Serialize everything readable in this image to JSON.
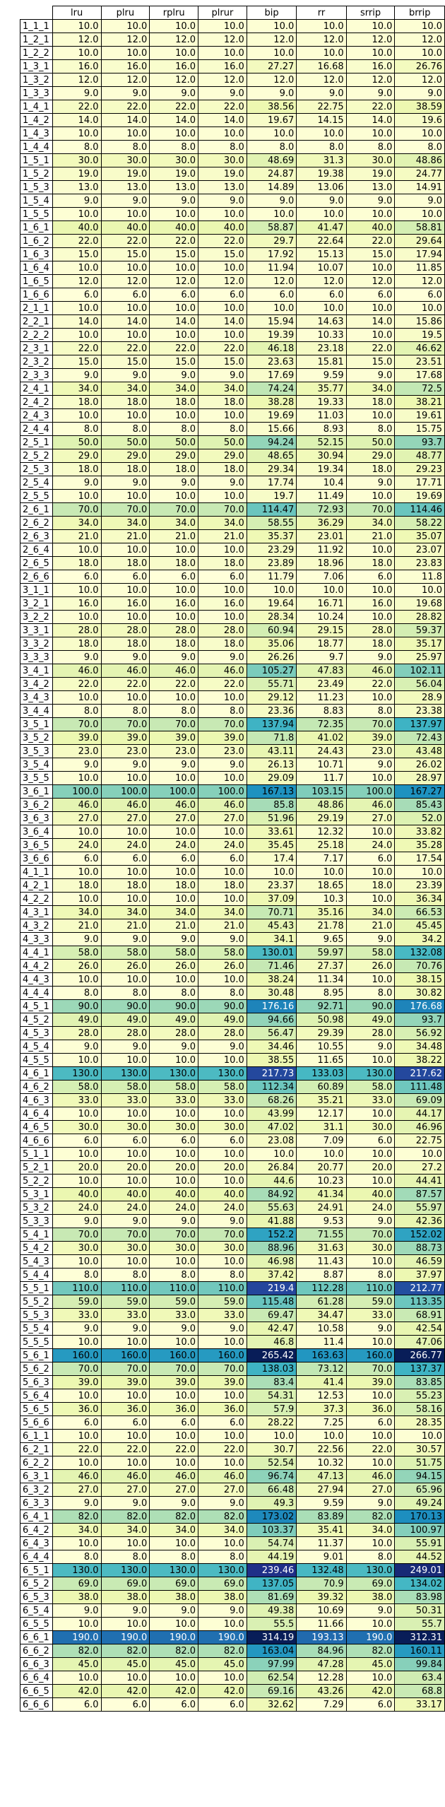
{
  "chart_data": {
    "type": "table",
    "columns": [
      "lru",
      "plru",
      "rplru",
      "plrur",
      "bip",
      "rr",
      "srrip",
      "brrip"
    ],
    "color_scale": {
      "colors": [
        "#ffffd9",
        "#edf8b1",
        "#c7e9b4",
        "#7fcdbb",
        "#41b6c4",
        "#1d91c0",
        "#225ea8",
        "#253494",
        "#081d58"
      ],
      "min": 6.0,
      "max": 265.42
    },
    "rows": [
      [
        "1_1_1",
        10.0,
        10.0,
        10.0,
        10.0,
        10.0,
        10.0,
        10.0,
        10.0
      ],
      [
        "1_2_1",
        12.0,
        12.0,
        12.0,
        12.0,
        12.0,
        12.0,
        12.0,
        12.0
      ],
      [
        "1_2_2",
        10.0,
        10.0,
        10.0,
        10.0,
        10.0,
        10.0,
        10.0,
        10.0
      ],
      [
        "1_3_1",
        16.0,
        16.0,
        16.0,
        16.0,
        27.27,
        16.68,
        16.0,
        26.76
      ],
      [
        "1_3_2",
        12.0,
        12.0,
        12.0,
        12.0,
        12.0,
        12.0,
        12.0,
        12.0
      ],
      [
        "1_3_3",
        9.0,
        9.0,
        9.0,
        9.0,
        9.0,
        9.0,
        9.0,
        9.0
      ],
      [
        "1_4_1",
        22.0,
        22.0,
        22.0,
        22.0,
        38.56,
        22.75,
        22.0,
        38.59
      ],
      [
        "1_4_2",
        14.0,
        14.0,
        14.0,
        14.0,
        19.67,
        14.15,
        14.0,
        19.6
      ],
      [
        "1_4_3",
        10.0,
        10.0,
        10.0,
        10.0,
        10.0,
        10.0,
        10.0,
        10.0
      ],
      [
        "1_4_4",
        8.0,
        8.0,
        8.0,
        8.0,
        8.0,
        8.0,
        8.0,
        8.0
      ],
      [
        "1_5_1",
        30.0,
        30.0,
        30.0,
        30.0,
        48.69,
        31.3,
        30.0,
        48.86
      ],
      [
        "1_5_2",
        19.0,
        19.0,
        19.0,
        19.0,
        24.87,
        19.38,
        19.0,
        24.77
      ],
      [
        "1_5_3",
        13.0,
        13.0,
        13.0,
        13.0,
        14.89,
        13.06,
        13.0,
        14.91
      ],
      [
        "1_5_4",
        9.0,
        9.0,
        9.0,
        9.0,
        9.0,
        9.0,
        9.0,
        9.0
      ],
      [
        "1_5_5",
        10.0,
        10.0,
        10.0,
        10.0,
        10.0,
        10.0,
        10.0,
        10.0
      ],
      [
        "1_6_1",
        40.0,
        40.0,
        40.0,
        40.0,
        58.87,
        41.47,
        40.0,
        58.81
      ],
      [
        "1_6_2",
        22.0,
        22.0,
        22.0,
        22.0,
        29.7,
        22.64,
        22.0,
        29.64
      ],
      [
        "1_6_3",
        15.0,
        15.0,
        15.0,
        15.0,
        17.92,
        15.13,
        15.0,
        17.94
      ],
      [
        "1_6_4",
        10.0,
        10.0,
        10.0,
        10.0,
        11.94,
        10.07,
        10.0,
        11.85
      ],
      [
        "1_6_5",
        12.0,
        12.0,
        12.0,
        12.0,
        12.0,
        12.0,
        12.0,
        12.0
      ],
      [
        "1_6_6",
        6.0,
        6.0,
        6.0,
        6.0,
        6.0,
        6.0,
        6.0,
        6.0
      ],
      [
        "2_1_1",
        10.0,
        10.0,
        10.0,
        10.0,
        10.0,
        10.0,
        10.0,
        10.0
      ],
      [
        "2_2_1",
        14.0,
        14.0,
        14.0,
        14.0,
        15.94,
        14.63,
        14.0,
        15.86
      ],
      [
        "2_2_2",
        10.0,
        10.0,
        10.0,
        10.0,
        19.39,
        10.33,
        10.0,
        19.5
      ],
      [
        "2_3_1",
        22.0,
        22.0,
        22.0,
        22.0,
        46.18,
        23.18,
        22.0,
        46.62
      ],
      [
        "2_3_2",
        15.0,
        15.0,
        15.0,
        15.0,
        23.63,
        15.81,
        15.0,
        23.51
      ],
      [
        "2_3_3",
        9.0,
        9.0,
        9.0,
        9.0,
        17.69,
        9.59,
        9.0,
        17.68
      ],
      [
        "2_4_1",
        34.0,
        34.0,
        34.0,
        34.0,
        74.24,
        35.77,
        34.0,
        72.5
      ],
      [
        "2_4_2",
        18.0,
        18.0,
        18.0,
        18.0,
        38.28,
        19.33,
        18.0,
        38.21
      ],
      [
        "2_4_3",
        10.0,
        10.0,
        10.0,
        10.0,
        19.69,
        11.03,
        10.0,
        19.61
      ],
      [
        "2_4_4",
        8.0,
        8.0,
        8.0,
        8.0,
        15.66,
        8.93,
        8.0,
        15.75
      ],
      [
        "2_5_1",
        50.0,
        50.0,
        50.0,
        50.0,
        94.24,
        52.15,
        50.0,
        93.7
      ],
      [
        "2_5_2",
        29.0,
        29.0,
        29.0,
        29.0,
        48.65,
        30.94,
        29.0,
        48.77
      ],
      [
        "2_5_3",
        18.0,
        18.0,
        18.0,
        18.0,
        29.34,
        19.34,
        18.0,
        29.23
      ],
      [
        "2_5_4",
        9.0,
        9.0,
        9.0,
        9.0,
        17.74,
        10.4,
        9.0,
        17.71
      ],
      [
        "2_5_5",
        10.0,
        10.0,
        10.0,
        10.0,
        19.7,
        11.49,
        10.0,
        19.69
      ],
      [
        "2_6_1",
        70.0,
        70.0,
        70.0,
        70.0,
        114.47,
        72.93,
        70.0,
        114.46
      ],
      [
        "2_6_2",
        34.0,
        34.0,
        34.0,
        34.0,
        58.55,
        36.29,
        34.0,
        58.22
      ],
      [
        "2_6_3",
        21.0,
        21.0,
        21.0,
        21.0,
        35.37,
        23.01,
        21.0,
        35.07
      ],
      [
        "2_6_4",
        10.0,
        10.0,
        10.0,
        10.0,
        23.29,
        11.92,
        10.0,
        23.07
      ],
      [
        "2_6_5",
        18.0,
        18.0,
        18.0,
        18.0,
        23.89,
        18.96,
        18.0,
        23.83
      ],
      [
        "2_6_6",
        6.0,
        6.0,
        6.0,
        6.0,
        11.79,
        7.06,
        6.0,
        11.8
      ],
      [
        "3_1_1",
        10.0,
        10.0,
        10.0,
        10.0,
        10.0,
        10.0,
        10.0,
        10.0
      ],
      [
        "3_2_1",
        16.0,
        16.0,
        16.0,
        16.0,
        19.64,
        16.71,
        16.0,
        19.68
      ],
      [
        "3_2_2",
        10.0,
        10.0,
        10.0,
        10.0,
        28.34,
        10.24,
        10.0,
        28.82
      ],
      [
        "3_3_1",
        28.0,
        28.0,
        28.0,
        28.0,
        60.94,
        29.15,
        28.0,
        59.37
      ],
      [
        "3_3_2",
        18.0,
        18.0,
        18.0,
        18.0,
        35.06,
        18.77,
        18.0,
        35.17
      ],
      [
        "3_3_3",
        9.0,
        9.0,
        9.0,
        9.0,
        26.26,
        9.7,
        9.0,
        25.97
      ],
      [
        "3_4_1",
        46.0,
        46.0,
        46.0,
        46.0,
        105.27,
        47.83,
        46.0,
        102.11
      ],
      [
        "3_4_2",
        22.0,
        22.0,
        22.0,
        22.0,
        55.71,
        23.49,
        22.0,
        56.04
      ],
      [
        "3_4_3",
        10.0,
        10.0,
        10.0,
        10.0,
        29.12,
        11.23,
        10.0,
        28.9
      ],
      [
        "3_4_4",
        8.0,
        8.0,
        8.0,
        8.0,
        23.36,
        8.83,
        8.0,
        23.38
      ],
      [
        "3_5_1",
        70.0,
        70.0,
        70.0,
        70.0,
        137.94,
        72.35,
        70.0,
        137.97
      ],
      [
        "3_5_2",
        39.0,
        39.0,
        39.0,
        39.0,
        71.8,
        41.02,
        39.0,
        72.43
      ],
      [
        "3_5_3",
        23.0,
        23.0,
        23.0,
        23.0,
        43.11,
        24.43,
        23.0,
        43.48
      ],
      [
        "3_5_4",
        9.0,
        9.0,
        9.0,
        9.0,
        26.13,
        10.71,
        9.0,
        26.02
      ],
      [
        "3_5_5",
        10.0,
        10.0,
        10.0,
        10.0,
        29.09,
        11.7,
        10.0,
        28.97
      ],
      [
        "3_6_1",
        100.0,
        100.0,
        100.0,
        100.0,
        167.13,
        103.15,
        100.0,
        167.27
      ],
      [
        "3_6_2",
        46.0,
        46.0,
        46.0,
        46.0,
        85.8,
        48.86,
        46.0,
        85.43
      ],
      [
        "3_6_3",
        27.0,
        27.0,
        27.0,
        27.0,
        51.96,
        29.19,
        27.0,
        52.0
      ],
      [
        "3_6_4",
        10.0,
        10.0,
        10.0,
        10.0,
        33.61,
        12.32,
        10.0,
        33.82
      ],
      [
        "3_6_5",
        24.0,
        24.0,
        24.0,
        24.0,
        35.45,
        25.18,
        24.0,
        35.28
      ],
      [
        "3_6_6",
        6.0,
        6.0,
        6.0,
        6.0,
        17.4,
        7.17,
        6.0,
        17.54
      ],
      [
        "4_1_1",
        10.0,
        10.0,
        10.0,
        10.0,
        10.0,
        10.0,
        10.0,
        10.0
      ],
      [
        "4_2_1",
        18.0,
        18.0,
        18.0,
        18.0,
        23.37,
        18.65,
        18.0,
        23.39
      ],
      [
        "4_2_2",
        10.0,
        10.0,
        10.0,
        10.0,
        37.09,
        10.3,
        10.0,
        36.34
      ],
      [
        "4_3_1",
        34.0,
        34.0,
        34.0,
        34.0,
        70.71,
        35.16,
        34.0,
        66.53
      ],
      [
        "4_3_2",
        21.0,
        21.0,
        21.0,
        21.0,
        45.43,
        21.78,
        21.0,
        45.45
      ],
      [
        "4_3_3",
        9.0,
        9.0,
        9.0,
        9.0,
        34.1,
        9.65,
        9.0,
        34.2
      ],
      [
        "4_4_1",
        58.0,
        58.0,
        58.0,
        58.0,
        130.01,
        59.97,
        58.0,
        132.08
      ],
      [
        "4_4_2",
        26.0,
        26.0,
        26.0,
        26.0,
        71.46,
        27.37,
        26.0,
        70.76
      ],
      [
        "4_4_3",
        10.0,
        10.0,
        10.0,
        10.0,
        38.24,
        11.34,
        10.0,
        38.15
      ],
      [
        "4_4_4",
        8.0,
        8.0,
        8.0,
        8.0,
        30.48,
        8.95,
        8.0,
        30.82
      ],
      [
        "4_5_1",
        90.0,
        90.0,
        90.0,
        90.0,
        176.16,
        92.71,
        90.0,
        176.68
      ],
      [
        "4_5_2",
        49.0,
        49.0,
        49.0,
        49.0,
        94.66,
        50.98,
        49.0,
        93.7
      ],
      [
        "4_5_3",
        28.0,
        28.0,
        28.0,
        28.0,
        56.47,
        29.39,
        28.0,
        56.92
      ],
      [
        "4_5_4",
        9.0,
        9.0,
        9.0,
        9.0,
        34.46,
        10.55,
        9.0,
        34.48
      ],
      [
        "4_5_5",
        10.0,
        10.0,
        10.0,
        10.0,
        38.55,
        11.65,
        10.0,
        38.22
      ],
      [
        "4_6_1",
        130.0,
        130.0,
        130.0,
        130.0,
        217.73,
        133.03,
        130.0,
        217.62
      ],
      [
        "4_6_2",
        58.0,
        58.0,
        58.0,
        58.0,
        112.34,
        60.89,
        58.0,
        111.48
      ],
      [
        "4_6_3",
        33.0,
        33.0,
        33.0,
        33.0,
        68.26,
        35.21,
        33.0,
        69.09
      ],
      [
        "4_6_4",
        10.0,
        10.0,
        10.0,
        10.0,
        43.99,
        12.17,
        10.0,
        44.17
      ],
      [
        "4_6_5",
        30.0,
        30.0,
        30.0,
        30.0,
        47.02,
        31.1,
        30.0,
        46.96
      ],
      [
        "4_6_6",
        6.0,
        6.0,
        6.0,
        6.0,
        23.08,
        7.09,
        6.0,
        22.75
      ],
      [
        "5_1_1",
        10.0,
        10.0,
        10.0,
        10.0,
        10.0,
        10.0,
        10.0,
        10.0
      ],
      [
        "5_2_1",
        20.0,
        20.0,
        20.0,
        20.0,
        26.84,
        20.77,
        20.0,
        27.2
      ],
      [
        "5_2_2",
        10.0,
        10.0,
        10.0,
        10.0,
        44.6,
        10.23,
        10.0,
        44.41
      ],
      [
        "5_3_1",
        40.0,
        40.0,
        40.0,
        40.0,
        84.92,
        41.34,
        40.0,
        87.57
      ],
      [
        "5_3_2",
        24.0,
        24.0,
        24.0,
        24.0,
        55.63,
        24.91,
        24.0,
        55.97
      ],
      [
        "5_3_3",
        9.0,
        9.0,
        9.0,
        9.0,
        41.88,
        9.53,
        9.0,
        42.36
      ],
      [
        "5_4_1",
        70.0,
        70.0,
        70.0,
        70.0,
        152.2,
        71.55,
        70.0,
        152.02
      ],
      [
        "5_4_2",
        30.0,
        30.0,
        30.0,
        30.0,
        88.96,
        31.63,
        30.0,
        88.73
      ],
      [
        "5_4_3",
        10.0,
        10.0,
        10.0,
        10.0,
        46.98,
        11.43,
        10.0,
        46.59
      ],
      [
        "5_4_4",
        8.0,
        8.0,
        8.0,
        8.0,
        37.42,
        8.87,
        8.0,
        37.97
      ],
      [
        "5_5_1",
        110.0,
        110.0,
        110.0,
        110.0,
        219.4,
        112.28,
        110.0,
        212.77
      ],
      [
        "5_5_2",
        59.0,
        59.0,
        59.0,
        59.0,
        115.48,
        61.28,
        59.0,
        113.35
      ],
      [
        "5_5_3",
        33.0,
        33.0,
        33.0,
        33.0,
        69.47,
        34.47,
        33.0,
        68.91
      ],
      [
        "5_5_4",
        9.0,
        9.0,
        9.0,
        9.0,
        42.47,
        10.58,
        9.0,
        42.54
      ],
      [
        "5_5_5",
        10.0,
        10.0,
        10.0,
        10.0,
        46.8,
        11.4,
        10.0,
        47.06
      ],
      [
        "5_6_1",
        160.0,
        160.0,
        160.0,
        160.0,
        265.42,
        163.63,
        160.0,
        266.77
      ],
      [
        "5_6_2",
        70.0,
        70.0,
        70.0,
        70.0,
        138.03,
        73.12,
        70.0,
        137.37
      ],
      [
        "5_6_3",
        39.0,
        39.0,
        39.0,
        39.0,
        83.4,
        41.4,
        39.0,
        83.85
      ],
      [
        "5_6_4",
        10.0,
        10.0,
        10.0,
        10.0,
        54.31,
        12.53,
        10.0,
        55.23
      ],
      [
        "5_6_5",
        36.0,
        36.0,
        36.0,
        36.0,
        57.9,
        37.3,
        36.0,
        58.16
      ],
      [
        "5_6_6",
        6.0,
        6.0,
        6.0,
        6.0,
        28.22,
        7.25,
        6.0,
        28.35
      ],
      [
        "6_1_1",
        10.0,
        10.0,
        10.0,
        10.0,
        10.0,
        10.0,
        10.0,
        10.0
      ],
      [
        "6_2_1",
        22.0,
        22.0,
        22.0,
        22.0,
        30.7,
        22.56,
        22.0,
        30.57
      ],
      [
        "6_2_2",
        10.0,
        10.0,
        10.0,
        10.0,
        52.54,
        10.32,
        10.0,
        51.75
      ],
      [
        "6_3_1",
        46.0,
        46.0,
        46.0,
        46.0,
        96.74,
        47.13,
        46.0,
        94.15
      ],
      [
        "6_3_2",
        27.0,
        27.0,
        27.0,
        27.0,
        66.48,
        27.94,
        27.0,
        65.96
      ],
      [
        "6_3_3",
        9.0,
        9.0,
        9.0,
        9.0,
        49.3,
        9.59,
        9.0,
        49.24
      ],
      [
        "6_4_1",
        82.0,
        82.0,
        82.0,
        82.0,
        173.02,
        83.89,
        82.0,
        170.13
      ],
      [
        "6_4_2",
        34.0,
        34.0,
        34.0,
        34.0,
        103.37,
        35.41,
        34.0,
        100.97
      ],
      [
        "6_4_3",
        10.0,
        10.0,
        10.0,
        10.0,
        54.74,
        11.37,
        10.0,
        55.91
      ],
      [
        "6_4_4",
        8.0,
        8.0,
        8.0,
        8.0,
        44.19,
        9.01,
        8.0,
        44.52
      ],
      [
        "6_5_1",
        130.0,
        130.0,
        130.0,
        130.0,
        239.46,
        132.48,
        130.0,
        249.01
      ],
      [
        "6_5_2",
        69.0,
        69.0,
        69.0,
        69.0,
        137.05,
        70.9,
        69.0,
        134.02
      ],
      [
        "6_5_3",
        38.0,
        38.0,
        38.0,
        38.0,
        81.69,
        39.32,
        38.0,
        83.98
      ],
      [
        "6_5_4",
        9.0,
        9.0,
        9.0,
        9.0,
        49.38,
        10.69,
        9.0,
        50.31
      ],
      [
        "6_5_5",
        10.0,
        10.0,
        10.0,
        10.0,
        55.5,
        11.66,
        10.0,
        55.7
      ],
      [
        "6_6_1",
        190.0,
        190.0,
        190.0,
        190.0,
        314.19,
        193.13,
        190.0,
        312.31
      ],
      [
        "6_6_2",
        82.0,
        82.0,
        82.0,
        82.0,
        163.04,
        84.96,
        82.0,
        160.11
      ],
      [
        "6_6_3",
        45.0,
        45.0,
        45.0,
        45.0,
        97.99,
        47.28,
        45.0,
        99.84
      ],
      [
        "6_6_4",
        10.0,
        10.0,
        10.0,
        10.0,
        62.54,
        12.28,
        10.0,
        63.4
      ],
      [
        "6_6_5",
        42.0,
        42.0,
        42.0,
        42.0,
        69.16,
        43.26,
        42.0,
        68.8
      ],
      [
        "6_6_6",
        6.0,
        6.0,
        6.0,
        6.0,
        32.62,
        7.29,
        6.0,
        33.17
      ]
    ]
  }
}
